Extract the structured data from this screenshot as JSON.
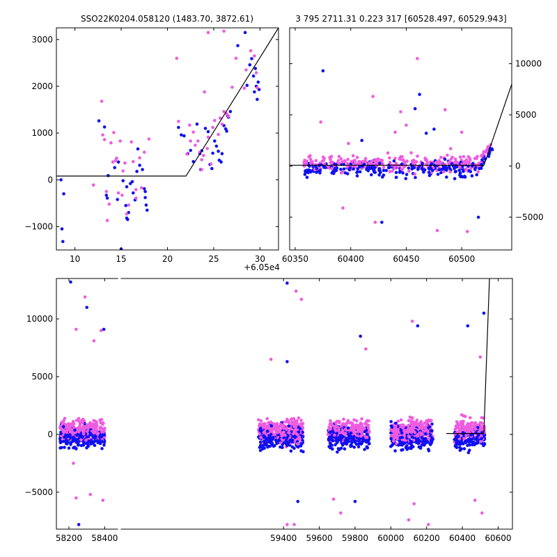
{
  "colors": {
    "blue": "#1010f0",
    "magenta": "#ee5ce0",
    "model_line": "#000000",
    "frame": "#000000"
  },
  "chart_data": [
    {
      "type": "scatter",
      "title": "SSO22K0204.058120 (1483.70, 3872.61)",
      "x_offset_label": "+6.05e4",
      "xlim": [
        8,
        32
      ],
      "ylim": [
        -1500,
        3250
      ],
      "xticks": [
        10,
        15,
        20,
        25,
        30
      ],
      "yticks": [
        -1000,
        0,
        1000,
        2000,
        3000
      ],
      "yticks_side": "left",
      "model_line": {
        "x": [
          8,
          22,
          32
        ],
        "y": [
          80,
          80,
          3250
        ]
      },
      "series": [
        {
          "color_key": "blue",
          "points": [
            [
              8.5,
              0
            ],
            [
              8.6,
              -1050
            ],
            [
              8.7,
              -1320
            ],
            [
              8.8,
              -300
            ],
            [
              12.6,
              1260
            ],
            [
              13.2,
              1130
            ],
            [
              13.4,
              -330
            ],
            [
              13.5,
              -390
            ],
            [
              13.6,
              90
            ],
            [
              14.3,
              260
            ],
            [
              14.5,
              460
            ],
            [
              14.6,
              -420
            ],
            [
              14.7,
              380
            ],
            [
              15.0,
              -1480
            ],
            [
              15.2,
              -20
            ],
            [
              15.5,
              -550
            ],
            [
              15.6,
              -820
            ],
            [
              15.7,
              -850
            ],
            [
              15.8,
              -700
            ],
            [
              15.6,
              -150
            ],
            [
              16.0,
              -80
            ],
            [
              16.2,
              -40
            ],
            [
              16.3,
              -280
            ],
            [
              16.5,
              -430
            ],
            [
              16.7,
              180
            ],
            [
              16.8,
              660
            ],
            [
              17.0,
              310
            ],
            [
              17.3,
              220
            ],
            [
              17.5,
              -190
            ],
            [
              17.6,
              -250
            ],
            [
              17.6,
              -380
            ],
            [
              17.7,
              -540
            ],
            [
              17.8,
              -650
            ],
            [
              21.2,
              1120
            ],
            [
              21.5,
              960
            ],
            [
              21.8,
              940
            ],
            [
              22.2,
              560
            ],
            [
              22.5,
              630
            ],
            [
              22.8,
              390
            ],
            [
              23.2,
              1190
            ],
            [
              23.5,
              560
            ],
            [
              23.6,
              220
            ],
            [
              23.7,
              620
            ],
            [
              24.1,
              1100
            ],
            [
              24.4,
              1030
            ],
            [
              24.6,
              330
            ],
            [
              24.8,
              240
            ],
            [
              24.9,
              570
            ],
            [
              25.1,
              830
            ],
            [
              25.3,
              720
            ],
            [
              25.5,
              610
            ],
            [
              25.6,
              420
            ],
            [
              25.8,
              380
            ],
            [
              25.9,
              560
            ],
            [
              26.1,
              1160
            ],
            [
              26.3,
              1090
            ],
            [
              26.4,
              1040
            ],
            [
              26.5,
              1370
            ],
            [
              26.6,
              1340
            ],
            [
              26.8,
              1460
            ],
            [
              27.6,
              2870
            ],
            [
              28.4,
              3150
            ],
            [
              28.6,
              2020
            ],
            [
              28.9,
              2460
            ],
            [
              29.1,
              2590
            ],
            [
              29.3,
              2220
            ],
            [
              29.4,
              1880
            ],
            [
              29.6,
              2000
            ],
            [
              29.8,
              2090
            ],
            [
              29.9,
              1930
            ],
            [
              29.7,
              1720
            ],
            [
              29.5,
              2380
            ]
          ]
        },
        {
          "color_key": "magenta",
          "points": [
            [
              12.0,
              -110
            ],
            [
              12.9,
              1680
            ],
            [
              13.0,
              960
            ],
            [
              13.2,
              860
            ],
            [
              13.4,
              -250
            ],
            [
              13.5,
              -870
            ],
            [
              13.7,
              -520
            ],
            [
              13.9,
              790
            ],
            [
              14.1,
              380
            ],
            [
              14.2,
              1010
            ],
            [
              14.4,
              410
            ],
            [
              14.5,
              460
            ],
            [
              14.7,
              -280
            ],
            [
              14.9,
              830
            ],
            [
              15.1,
              -330
            ],
            [
              15.2,
              190
            ],
            [
              15.4,
              360
            ],
            [
              15.6,
              -730
            ],
            [
              15.8,
              -540
            ],
            [
              16.1,
              810
            ],
            [
              16.3,
              390
            ],
            [
              16.6,
              -210
            ],
            [
              16.6,
              -390
            ],
            [
              17.0,
              470
            ],
            [
              17.2,
              -170
            ],
            [
              17.5,
              590
            ],
            [
              18.0,
              870
            ],
            [
              21.0,
              2600
            ],
            [
              21.2,
              1250
            ],
            [
              22.1,
              550
            ],
            [
              22.4,
              1170
            ],
            [
              22.5,
              830
            ],
            [
              22.8,
              1020
            ],
            [
              23.0,
              740
            ],
            [
              23.3,
              830
            ],
            [
              23.5,
              590
            ],
            [
              23.7,
              430
            ],
            [
              23.9,
              520
            ],
            [
              24.0,
              1880
            ],
            [
              24.3,
              670
            ],
            [
              24.4,
              910
            ],
            [
              24.7,
              340
            ],
            [
              24.9,
              1120
            ],
            [
              25.1,
              1270
            ],
            [
              25.5,
              970
            ],
            [
              25.7,
              1320
            ],
            [
              25.9,
              1190
            ],
            [
              26.1,
              1460
            ],
            [
              26.4,
              1410
            ],
            [
              26.6,
              1360
            ],
            [
              27.0,
              1980
            ],
            [
              27.4,
              2600
            ],
            [
              28.3,
              1960
            ],
            [
              28.5,
              2350
            ],
            [
              28.7,
              3330
            ],
            [
              29.0,
              2760
            ],
            [
              29.4,
              2650
            ],
            [
              29.6,
              2290
            ],
            [
              29.7,
              1970
            ],
            [
              26.1,
              3180
            ],
            [
              24.4,
              3150
            ],
            [
              23.7,
              220
            ]
          ]
        }
      ]
    },
    {
      "type": "scatter",
      "title": "3 795 2711.31 0.223 317 [60528.497, 60529.943]",
      "xlim": [
        60345,
        60545
      ],
      "ylim": [
        -8200,
        13500
      ],
      "xticks": [
        60350,
        60400,
        60450,
        60500
      ],
      "yticks": [
        -5000,
        0,
        5000,
        10000
      ],
      "yticks_side": "right",
      "model_line": {
        "x": [
          60345,
          60520,
          60545
        ],
        "y": [
          80,
          80,
          8000
        ]
      },
      "band_x_ranges": [
        [
          60358,
          60430
        ],
        [
          60432,
          60515
        ],
        [
          60515,
          60528
        ]
      ],
      "band_spread": [
        700,
        900,
        600
      ],
      "band_outliers": [
        [
          60375,
          9300
        ],
        [
          60373,
          4300
        ],
        [
          60393,
          -4100
        ],
        [
          60428,
          -5500
        ],
        [
          60422,
          -5500
        ],
        [
          60445,
          5300
        ],
        [
          60458,
          5600
        ],
        [
          60460,
          10500
        ],
        [
          60478,
          -6300
        ],
        [
          60475,
          3600
        ],
        [
          60490,
          1700
        ],
        [
          60505,
          -6400
        ],
        [
          60515,
          -5000
        ],
        [
          60420,
          6800
        ],
        [
          60450,
          4000
        ],
        [
          60468,
          3200
        ],
        [
          60485,
          5500
        ],
        [
          60398,
          2200
        ],
        [
          60410,
          2500
        ],
        [
          60440,
          3300
        ],
        [
          60500,
          3300
        ],
        [
          60462,
          7000
        ]
      ]
    },
    {
      "type": "scatter",
      "title": "",
      "xlim": [
        58130,
        60680
      ],
      "ylim": [
        -8200,
        13500
      ],
      "xticks": [
        58200,
        58400,
        59400,
        59600,
        59800,
        60000,
        60200,
        60400,
        60600
      ],
      "yticks": [
        -5000,
        0,
        5000,
        10000
      ],
      "yticks_side": "left",
      "axis_gap": [
        58475,
        58490
      ],
      "model_line": {
        "x": [
          60310,
          60520,
          60555
        ],
        "y": [
          80,
          80,
          15000
        ]
      },
      "clusters": [
        {
          "x_range": [
            58150,
            58400
          ],
          "spread": 900
        },
        {
          "x_range": [
            59260,
            59510
          ],
          "spread": 1000
        },
        {
          "x_range": [
            59650,
            59880
          ],
          "spread": 900
        },
        {
          "x_range": [
            60000,
            60235
          ],
          "spread": 1000
        },
        {
          "x_range": [
            60355,
            60525
          ],
          "spread": 900
        }
      ],
      "outliers": [
        [
          58210,
          13200
        ],
        [
          58240,
          9100
        ],
        [
          58290,
          11900
        ],
        [
          58300,
          11000
        ],
        [
          58380,
          9000
        ],
        [
          58340,
          8100
        ],
        [
          58395,
          9100
        ],
        [
          58225,
          -2500
        ],
        [
          58240,
          -5500
        ],
        [
          58255,
          -7800
        ],
        [
          58320,
          -5200
        ],
        [
          58390,
          -5700
        ],
        [
          59420,
          13100
        ],
        [
          59470,
          12400
        ],
        [
          59500,
          11700
        ],
        [
          59420,
          6300
        ],
        [
          59420,
          -7800
        ],
        [
          59460,
          -7800
        ],
        [
          59480,
          -5800
        ],
        [
          59330,
          6500
        ],
        [
          59860,
          7400
        ],
        [
          59830,
          8500
        ],
        [
          59720,
          -6800
        ],
        [
          59680,
          -5600
        ],
        [
          59800,
          -5800
        ],
        [
          60100,
          -7400
        ],
        [
          60120,
          9800
        ],
        [
          60150,
          9400
        ],
        [
          60130,
          -6000
        ],
        [
          60210,
          -7800
        ],
        [
          60430,
          9400
        ],
        [
          60470,
          -5700
        ],
        [
          60510,
          -6800
        ],
        [
          60520,
          10500
        ],
        [
          60500,
          6700
        ]
      ]
    }
  ]
}
